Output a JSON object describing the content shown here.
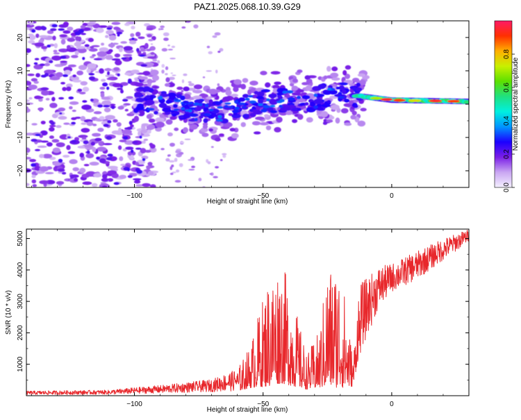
{
  "figure": {
    "title": "PAZ1.2025.068.10.39.G29"
  },
  "chart_data": [
    {
      "type": "heatmap",
      "name": "spectrogram",
      "xlabel": "Height of straight line (km)",
      "ylabel": "Frequency (Hz)",
      "xlim": [
        -142,
        30
      ],
      "ylim": [
        -25,
        25
      ],
      "x_ticks": [
        -100,
        -50,
        0
      ],
      "y_ticks": [
        -20,
        -10,
        0,
        10,
        20
      ],
      "grid": false,
      "colorbar": {
        "label": "Normalized spectral amplitude",
        "range": [
          0,
          1
        ],
        "ticks": [
          0.0,
          0.2,
          0.4,
          0.6,
          0.8
        ],
        "colors": [
          "#f4f0ff",
          "#c9a6f2",
          "#7a1ee6",
          "#1c00ff",
          "#0094ff",
          "#00f0e0",
          "#20e080",
          "#5ce000",
          "#c8f000",
          "#ffb000",
          "#ff3000",
          "#ff1a66"
        ]
      },
      "ridge_trend": [
        {
          "x": -97,
          "y": 1.5
        },
        {
          "x": -80,
          "y": -1.5
        },
        {
          "x": -65,
          "y": -2
        },
        {
          "x": -50,
          "y": 1
        },
        {
          "x": -35,
          "y": 1
        },
        {
          "x": -20,
          "y": 3
        },
        {
          "x": -10,
          "y": 2.2
        },
        {
          "x": 0,
          "y": 1.2
        },
        {
          "x": 30,
          "y": 0.8
        }
      ]
    },
    {
      "type": "line",
      "name": "snr",
      "xlabel": "Height of straight line (km)",
      "ylabel": "SNR (10 * v/v)",
      "xlim": [
        -142,
        30
      ],
      "ylim": [
        0,
        5300
      ],
      "x_ticks": [
        -100,
        -50,
        0
      ],
      "y_ticks": [
        1000,
        2000,
        3000,
        4000,
        5000
      ],
      "grid": false,
      "series_color": "#e8282c",
      "envelope": [
        {
          "x": -142,
          "low": 30,
          "high": 150
        },
        {
          "x": -110,
          "low": 40,
          "high": 180
        },
        {
          "x": -100,
          "low": 60,
          "high": 260
        },
        {
          "x": -90,
          "low": 80,
          "high": 330
        },
        {
          "x": -80,
          "low": 100,
          "high": 420
        },
        {
          "x": -70,
          "low": 120,
          "high": 520
        },
        {
          "x": -60,
          "low": 150,
          "high": 850
        },
        {
          "x": -55,
          "low": 250,
          "high": 1600
        },
        {
          "x": -48,
          "low": 300,
          "high": 3800
        },
        {
          "x": -43,
          "low": 400,
          "high": 4400
        },
        {
          "x": -38,
          "low": 300,
          "high": 3000
        },
        {
          "x": -33,
          "low": 200,
          "high": 1300
        },
        {
          "x": -28,
          "low": 250,
          "high": 2100
        },
        {
          "x": -25,
          "low": 300,
          "high": 4200
        },
        {
          "x": -20,
          "low": 250,
          "high": 4300
        },
        {
          "x": -15,
          "low": 300,
          "high": 1200
        },
        {
          "x": -13,
          "low": 1200,
          "high": 3500
        },
        {
          "x": -5,
          "low": 2800,
          "high": 4100
        },
        {
          "x": 0,
          "low": 3300,
          "high": 4200
        },
        {
          "x": 10,
          "low": 3700,
          "high": 4600
        },
        {
          "x": 20,
          "low": 4300,
          "high": 5000
        },
        {
          "x": 30,
          "low": 4900,
          "high": 5300
        }
      ]
    }
  ]
}
